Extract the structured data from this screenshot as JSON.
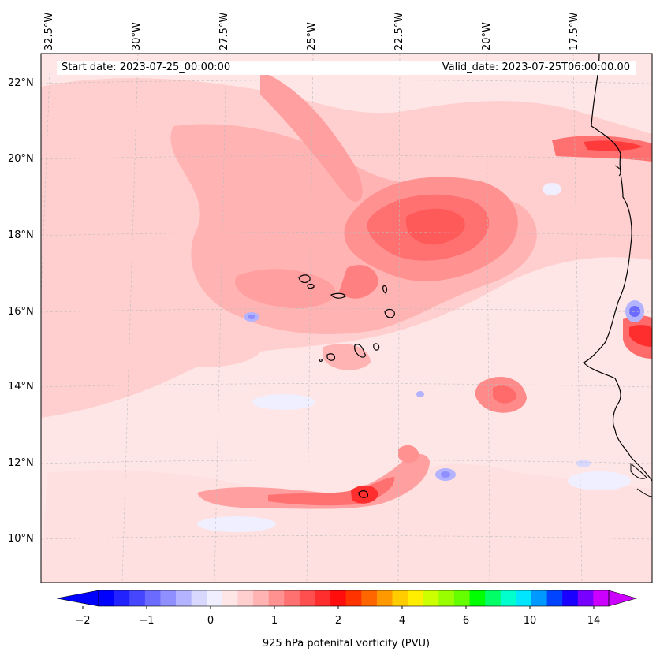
{
  "map": {
    "start_date_label": "Start date: 2023-07-25_00:00:00",
    "valid_date_label": "Valid_date: 2023-07-25T06:00:00.00",
    "lat_labels": [
      "22°N",
      "20°N",
      "18°N",
      "16°N",
      "14°N",
      "12°N",
      "10°N"
    ],
    "lon_labels": [
      "32.5°W",
      "30°W",
      "27.5°W",
      "25°W",
      "22.5°W",
      "20°W",
      "17.5°W"
    ],
    "background_color": "#ffe6e6",
    "coastline_color": "#000000"
  },
  "colorbar": {
    "title": "925 hPa potenital vorticity (PVU)",
    "tick_labels": [
      "−2",
      "−1",
      "0",
      "1",
      "2",
      "4",
      "6",
      "10",
      "14"
    ],
    "colors": [
      "#0000ff",
      "#2222ff",
      "#4646ff",
      "#6b6bff",
      "#8f8fff",
      "#b3b3ff",
      "#d8d8ff",
      "#efefff",
      "#ffe6e6",
      "#ffcfcf",
      "#ffb3b3",
      "#ff9191",
      "#ff7070",
      "#ff4f4f",
      "#ff2e2e",
      "#ff0d0d",
      "#ff3300",
      "#ff6600",
      "#ff9900",
      "#ffcc00",
      "#ffee00",
      "#ccff00",
      "#99ff00",
      "#66ff00",
      "#00ff00",
      "#00ff66",
      "#00ffcc",
      "#00e6ff",
      "#0099ff",
      "#0044ff",
      "#1a00ff",
      "#7700ff",
      "#cc00ff"
    ],
    "extend_low_color": "#0000ff",
    "extend_high_color": "#cc00ff"
  }
}
